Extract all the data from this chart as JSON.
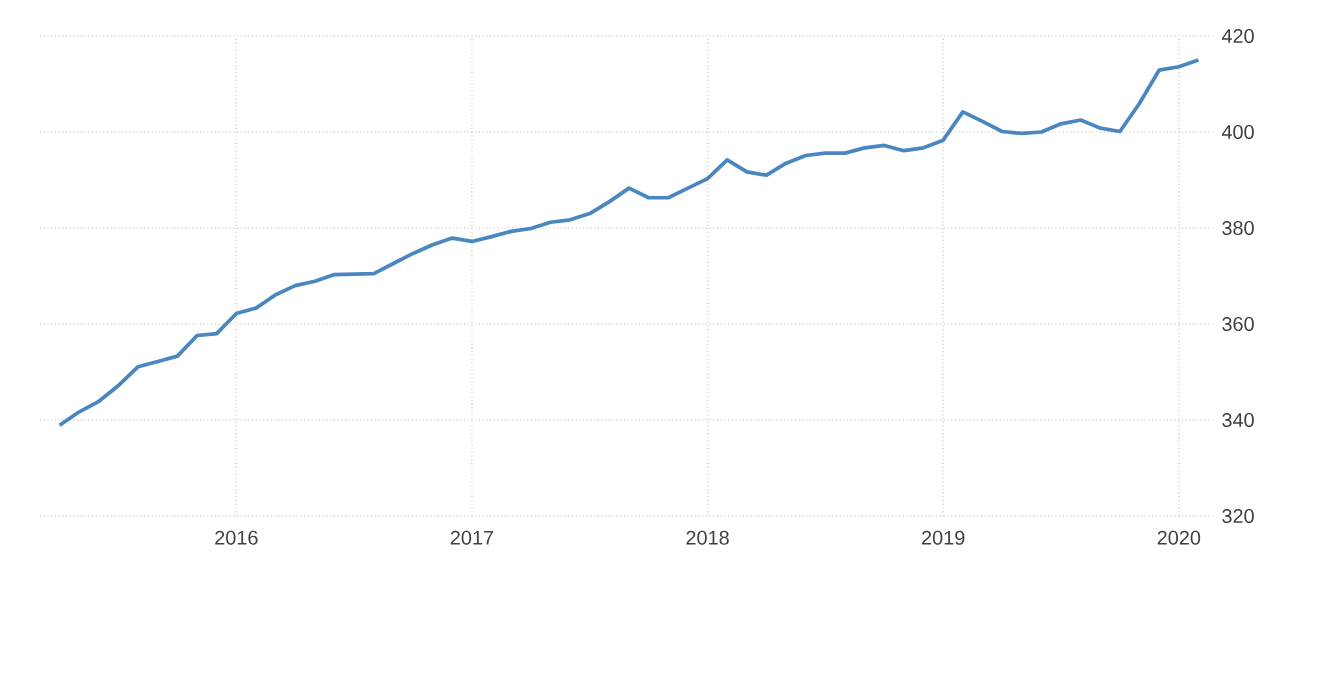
{
  "chart_data": {
    "type": "line",
    "x": [
      "2015-04",
      "2015-05",
      "2015-06",
      "2015-07",
      "2015-08",
      "2015-09",
      "2015-10",
      "2015-11",
      "2015-12",
      "2016-01",
      "2016-02",
      "2016-03",
      "2016-04",
      "2016-05",
      "2016-06",
      "2016-07",
      "2016-08",
      "2016-09",
      "2016-10",
      "2016-11",
      "2016-12",
      "2017-01",
      "2017-02",
      "2017-03",
      "2017-04",
      "2017-05",
      "2017-06",
      "2017-07",
      "2017-08",
      "2017-09",
      "2017-10",
      "2017-11",
      "2017-12",
      "2018-01",
      "2018-02",
      "2018-03",
      "2018-04",
      "2018-05",
      "2018-06",
      "2018-07",
      "2018-08",
      "2018-09",
      "2018-10",
      "2018-11",
      "2018-12",
      "2019-01",
      "2019-02",
      "2019-03",
      "2019-04",
      "2019-05",
      "2019-06",
      "2019-07",
      "2019-08",
      "2019-09",
      "2019-10",
      "2019-11",
      "2019-12",
      "2020-01",
      "2020-02"
    ],
    "values": [
      338.9,
      341.7,
      343.9,
      347.2,
      351.1,
      352.2,
      353.3,
      357.6,
      358.0,
      362.2,
      363.3,
      366.1,
      368.0,
      368.9,
      370.3,
      370.4,
      370.5,
      372.6,
      374.7,
      376.5,
      377.9,
      377.2,
      378.2,
      379.3,
      379.9,
      381.2,
      381.7,
      383.0,
      385.5,
      388.3,
      386.3,
      386.3,
      388.3,
      390.3,
      394.2,
      391.7,
      391.0,
      393.5,
      395.1,
      395.6,
      395.6,
      396.7,
      397.2,
      396.1,
      396.7,
      398.3,
      404.2,
      402.2,
      400.1,
      399.7,
      400.0,
      401.7,
      402.5,
      400.8,
      400.1,
      406.0,
      412.9,
      413.6,
      415.0
    ],
    "color": "#4a86c0",
    "xlim": [
      "2015-03-01",
      "2020-02-22"
    ],
    "xticks": [
      {
        "value": "2016-01-01",
        "label": "2016"
      },
      {
        "value": "2017-01-01",
        "label": "2017"
      },
      {
        "value": "2018-01-01",
        "label": "2018"
      },
      {
        "value": "2019-01-01",
        "label": "2019"
      },
      {
        "value": "2020-01-01",
        "label": "2020"
      }
    ],
    "ylim": [
      320,
      420
    ],
    "yticks": [
      320,
      340,
      360,
      380,
      400,
      420
    ],
    "grid": true,
    "marker": "none",
    "line_style": "solid"
  }
}
